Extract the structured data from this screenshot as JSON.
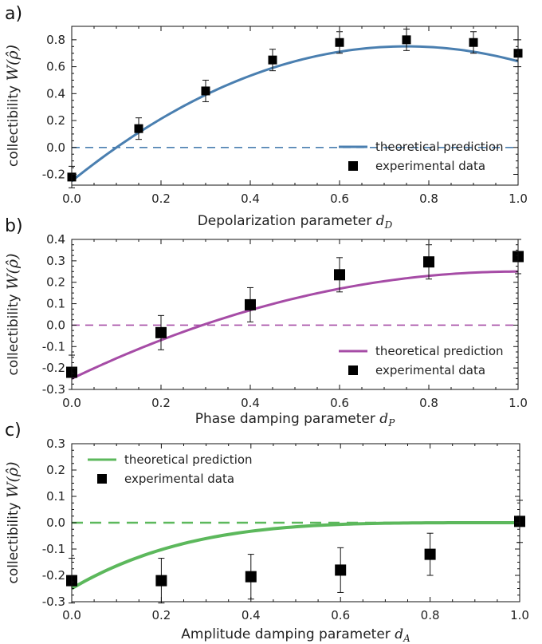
{
  "chart_data": [
    {
      "type": "line",
      "panel_label": "a)",
      "xlabel": "Depolarization parameter",
      "xlabel_math": "d",
      "xlabel_sub": "D",
      "ylabel": "collectibility",
      "ylabel_math": "W(ρ̂)",
      "xlim": [
        0.0,
        1.0
      ],
      "ylim": [
        -0.28,
        0.9
      ],
      "xticks": [
        "0.0",
        "0.2",
        "0.4",
        "0.6",
        "0.8",
        "1.0"
      ],
      "xtick_values": [
        0.0,
        0.2,
        0.4,
        0.6,
        0.8,
        1.0
      ],
      "yticks": [
        "-0.2",
        "0.0",
        "0.2",
        "0.4",
        "0.6",
        "0.8"
      ],
      "ytick_values": [
        -0.2,
        0.0,
        0.2,
        0.4,
        0.6,
        0.8
      ],
      "color": "#4a7fb0",
      "zero_line": true,
      "legend_position": "bottom-right",
      "theory": {
        "name": "theoretical prediction",
        "model": "quadratic",
        "coeffs": [
          -0.25,
          2.67,
          -1.78
        ]
      },
      "series": [
        {
          "name": "experimental data",
          "x": [
            0.0,
            0.15,
            0.3,
            0.45,
            0.6,
            0.75,
            0.9,
            1.0
          ],
          "y": [
            -0.22,
            0.14,
            0.42,
            0.65,
            0.78,
            0.8,
            0.78,
            0.7
          ],
          "yerr": [
            0.08,
            0.08,
            0.08,
            0.08,
            0.08,
            0.08,
            0.08,
            0.1
          ]
        }
      ]
    },
    {
      "type": "line",
      "panel_label": "b)",
      "xlabel": "Phase damping parameter",
      "xlabel_math": "d",
      "xlabel_sub": "P",
      "ylabel": "collectibility",
      "ylabel_math": "W(ρ̂)",
      "xlim": [
        0.0,
        1.0
      ],
      "ylim": [
        -0.3,
        0.4
      ],
      "xticks": [
        "0.0",
        "0.2",
        "0.4",
        "0.6",
        "0.8",
        "1.0"
      ],
      "xtick_values": [
        0.0,
        0.2,
        0.4,
        0.6,
        0.8,
        1.0
      ],
      "yticks": [
        "-0.3",
        "-0.2",
        "-0.1",
        "0.0",
        "0.1",
        "0.2",
        "0.3",
        "0.4"
      ],
      "ytick_values": [
        -0.3,
        -0.2,
        -0.1,
        0.0,
        0.1,
        0.2,
        0.3,
        0.4
      ],
      "color": "#a64ca6",
      "zero_line": true,
      "legend_position": "bottom-right",
      "theory": {
        "name": "theoretical prediction",
        "model": "quadratic",
        "coeffs": [
          -0.25,
          1.0,
          -0.5
        ]
      },
      "series": [
        {
          "name": "experimental data",
          "x": [
            0.0,
            0.2,
            0.4,
            0.6,
            0.8,
            1.0
          ],
          "y": [
            -0.22,
            -0.035,
            0.095,
            0.235,
            0.295,
            0.32
          ],
          "yerr": [
            0.08,
            0.08,
            0.08,
            0.08,
            0.08,
            0.08
          ]
        }
      ]
    },
    {
      "type": "line",
      "panel_label": "c)",
      "xlabel": "Amplitude damping parameter",
      "xlabel_math": "d",
      "xlabel_sub": "A",
      "ylabel": "collectibility",
      "ylabel_math": "W(ρ̂)",
      "xlim": [
        0.0,
        1.0
      ],
      "ylim": [
        -0.3,
        0.3
      ],
      "xticks": [
        "0.0",
        "0.2",
        "0.4",
        "0.6",
        "0.8",
        "1.0"
      ],
      "xtick_values": [
        0.0,
        0.2,
        0.4,
        0.6,
        0.8,
        1.0
      ],
      "yticks": [
        "-0.3",
        "-0.2",
        "-0.1",
        "0.0",
        "0.1",
        "0.2",
        "0.3"
      ],
      "ytick_values": [
        -0.3,
        -0.2,
        -0.1,
        0.0,
        0.1,
        0.2,
        0.3
      ],
      "color": "#5cb85c",
      "zero_line": true,
      "legend_position": "top-left",
      "theory": {
        "name": "theoretical prediction",
        "model": "power",
        "base": -0.25,
        "exponent": 4
      },
      "series": [
        {
          "name": "experimental data",
          "x": [
            0.0,
            0.2,
            0.4,
            0.6,
            0.8,
            1.0
          ],
          "y": [
            -0.22,
            -0.22,
            -0.205,
            -0.18,
            -0.12,
            0.005
          ],
          "yerr": [
            0.085,
            0.085,
            0.085,
            0.085,
            0.08,
            0.08
          ]
        }
      ]
    }
  ]
}
